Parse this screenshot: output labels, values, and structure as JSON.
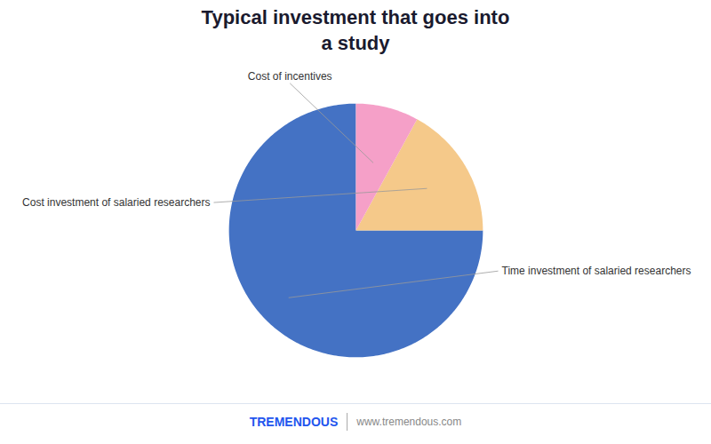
{
  "chart_data": {
    "type": "pie",
    "title": "Typical investment that goes into\na study",
    "categories": [
      "Time investment of salaried researchers",
      "Cost investment of salaried researchers",
      "Cost of incentives"
    ],
    "values": [
      75,
      17,
      8
    ],
    "colors": [
      "#4472C4",
      "#F5C98A",
      "#F5A0C8"
    ],
    "annotations": [
      {
        "text": "TREMENDOUS",
        "color": "#2255EE"
      },
      {
        "text": "www.tremendous.com",
        "color": "#888888"
      }
    ]
  }
}
